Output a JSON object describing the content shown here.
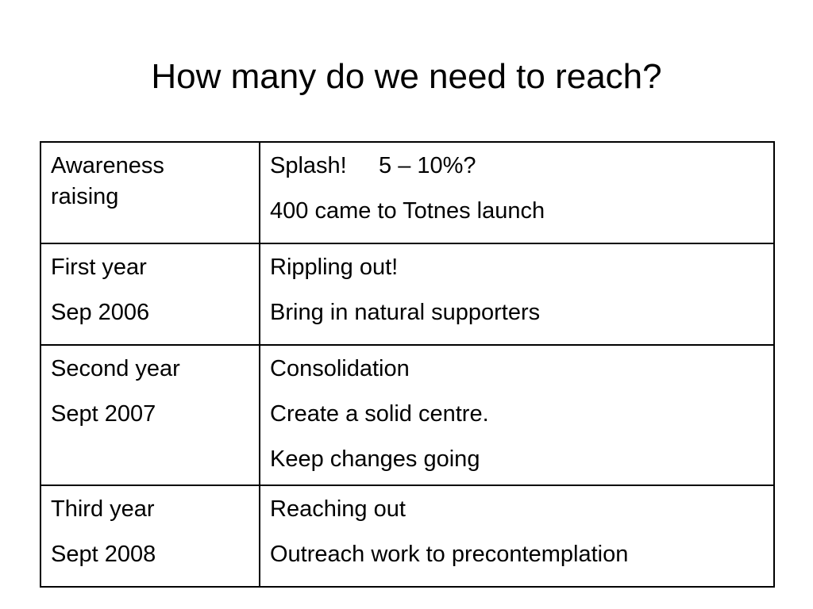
{
  "slide": {
    "title": "How many do we need to reach?"
  },
  "table": {
    "rows": [
      {
        "stage": [
          "Awareness",
          "raising"
        ],
        "details": [
          "Splash!     5 – 10%?",
          "400 came to Totnes launch"
        ]
      },
      {
        "stage": [
          "First year",
          "Sep 2006"
        ],
        "details": [
          "Rippling out!",
          "Bring in natural supporters"
        ]
      },
      {
        "stage": [
          "Second year",
          "Sept 2007"
        ],
        "details": [
          "Consolidation",
          "Create a solid centre.",
          "Keep changes going"
        ]
      },
      {
        "stage": [
          "Third year",
          "Sept 2008"
        ],
        "details": [
          "Reaching out",
          "Outreach work to precontemplation"
        ]
      }
    ]
  }
}
